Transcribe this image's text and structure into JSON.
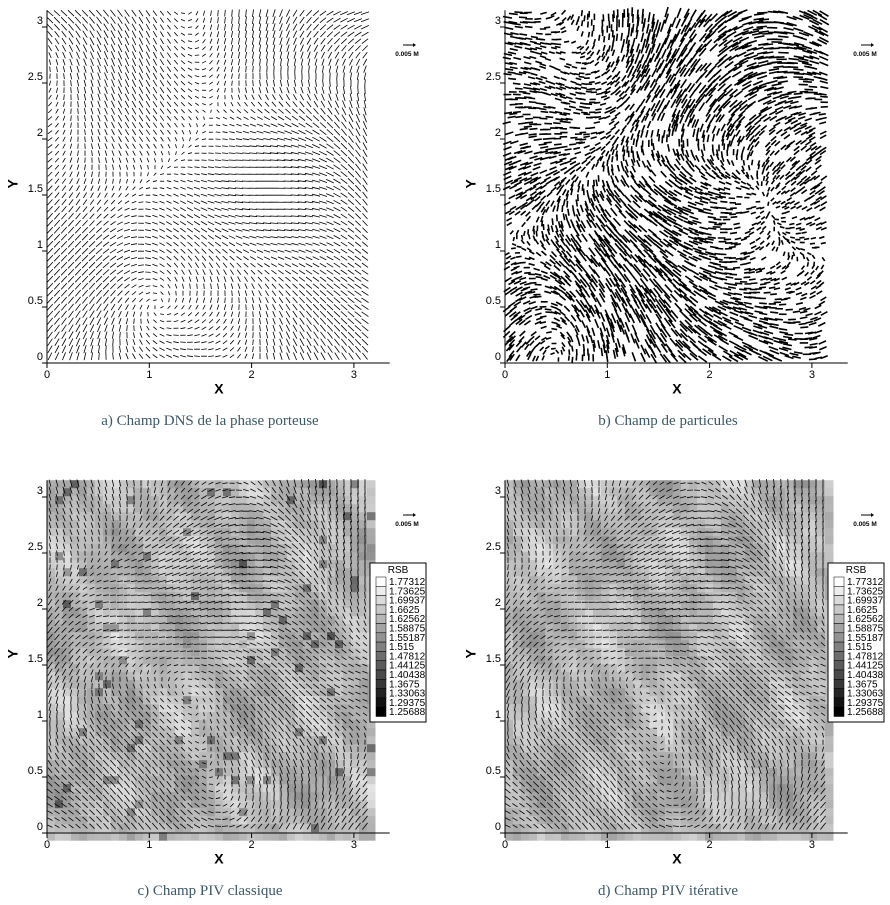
{
  "axes": {
    "x_label": "X",
    "y_label": "Y",
    "xticks": [
      0,
      1,
      2,
      3
    ],
    "yticks": [
      0,
      0.5,
      1,
      1.5,
      2,
      2.5,
      3
    ],
    "xlim": [
      0,
      3.35
    ],
    "ylim": [
      0,
      3.15
    ]
  },
  "panels": [
    {
      "caption": "a) Champ DNS de la phase porteuse",
      "scale_label": "0.005 M"
    },
    {
      "caption": "b) Champ de particules",
      "scale_label": "0.005 M"
    },
    {
      "caption": "c) Champ PIV classique",
      "scale_label": "0.005 M",
      "legend": {
        "title": "RSB",
        "levels": [
          1.77312,
          1.73625,
          1.69937,
          1.6625,
          1.62562,
          1.58875,
          1.55187,
          1.515,
          1.47812,
          1.44125,
          1.40438,
          1.3675,
          1.33063,
          1.29375,
          1.25688
        ]
      }
    },
    {
      "caption": "d) Champ PIV itérative",
      "scale_label": "0.005 M",
      "legend": {
        "title": "RSB",
        "levels": [
          1.77312,
          1.73625,
          1.69937,
          1.6625,
          1.62562,
          1.58875,
          1.55187,
          1.515,
          1.47812,
          1.44125,
          1.40438,
          1.3675,
          1.33063,
          1.29375,
          1.25688
        ]
      }
    }
  ]
}
